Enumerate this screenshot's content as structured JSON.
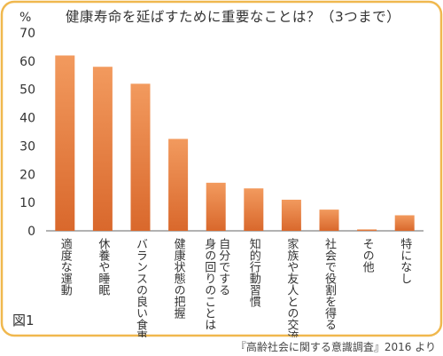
{
  "colors": {
    "frame": "#f0b84e",
    "bar_top": "#f29a5e",
    "bar_bottom": "#d9682c",
    "axis": "#666666",
    "text": "#333333"
  },
  "figure_label": "図1",
  "source": "『高齢社会に関する意識調査』2016 より",
  "chart_data": {
    "type": "bar",
    "title": "健康寿命を延ばすために重要なことは？（3つまで）",
    "ylabel": "%",
    "xlabel": "",
    "ylim": [
      0,
      70
    ],
    "yticks": [
      0,
      10,
      20,
      30,
      40,
      50,
      60,
      70
    ],
    "grid": false,
    "categories": [
      "適度な運動",
      "休養や睡眠",
      "バランスの良い食事",
      "健康状態の把握",
      "自分でする身の回りのことは",
      "知的行動習慣",
      "家族や友人との交流",
      "社会で役割を得る",
      "その他",
      "特になし"
    ],
    "category_lines": [
      [
        "適度な運動"
      ],
      [
        "休養や睡眠"
      ],
      [
        "バランスの良い食事"
      ],
      [
        "健康状態の把握"
      ],
      [
        "自分でする",
        "身の回りのことは"
      ],
      [
        "知的行動習慣"
      ],
      [
        "家族や友人との交流"
      ],
      [
        "社会で役割を得る"
      ],
      [
        "その他"
      ],
      [
        "特になし"
      ]
    ],
    "values": [
      62,
      58,
      52,
      32.5,
      17,
      15,
      11,
      7.5,
      0.5,
      5.5
    ]
  }
}
